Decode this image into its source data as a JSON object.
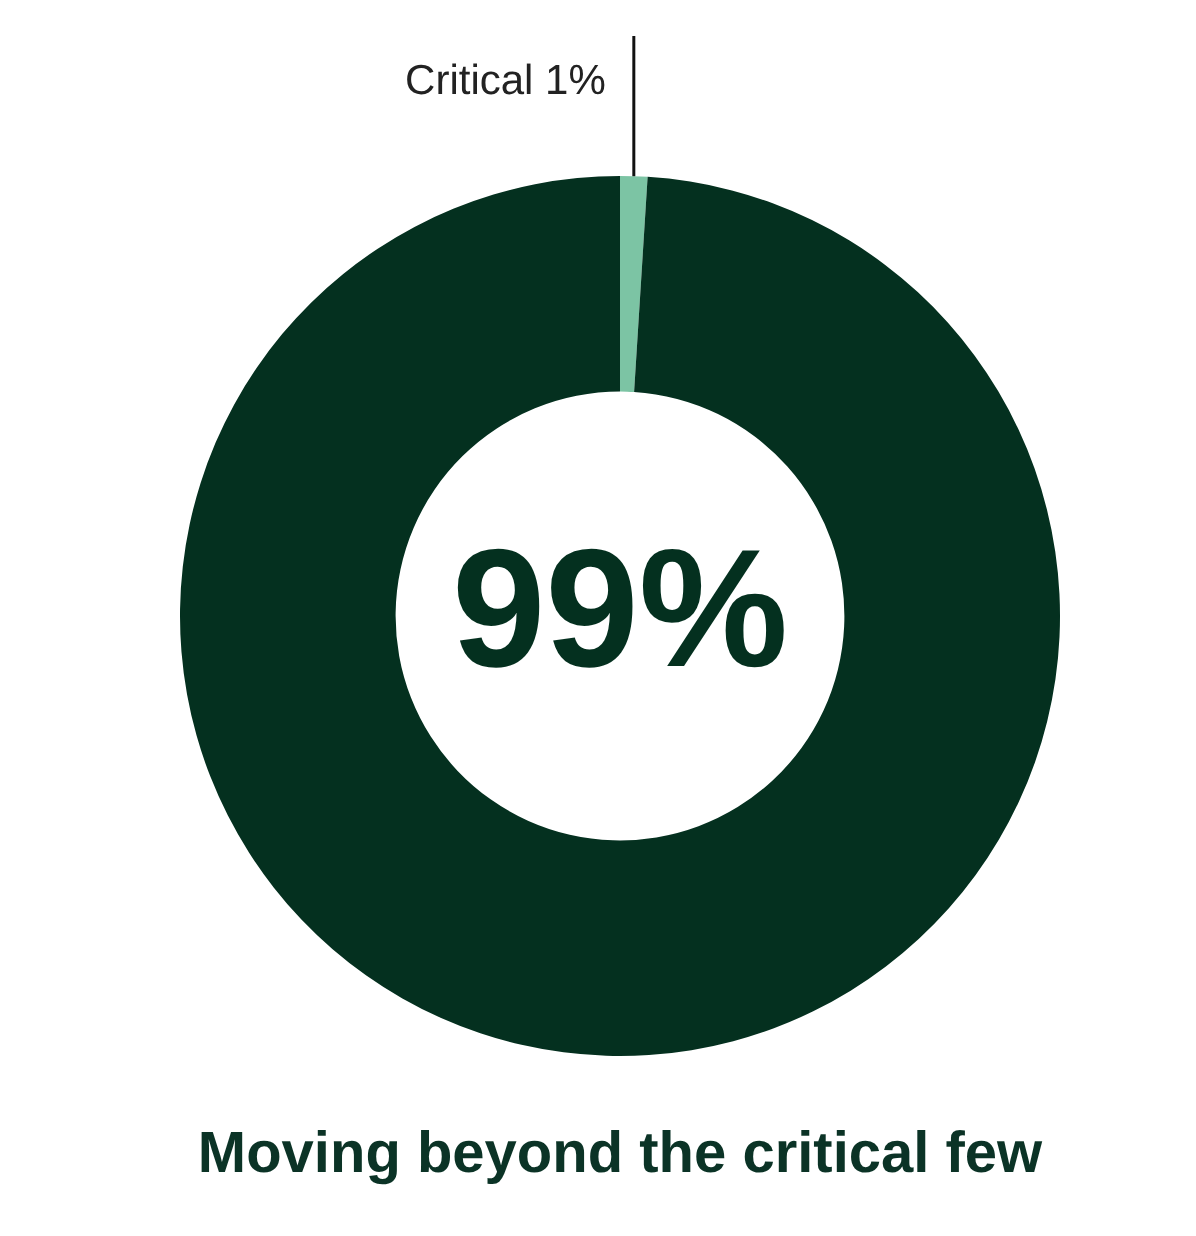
{
  "chart_data": {
    "type": "donut",
    "title": "Moving beyond the critical few",
    "categories": [
      "Critical",
      null
    ],
    "values": [
      1,
      99
    ],
    "colors": [
      "#7cc4a4",
      "#04301f"
    ],
    "value_labels": [
      "1%",
      "99%"
    ],
    "legend": false
  }
}
